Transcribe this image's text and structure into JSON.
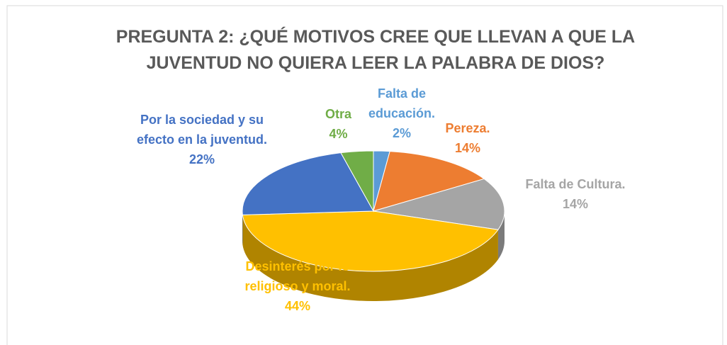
{
  "chart_data": {
    "type": "pie3d",
    "title": "PREGUNTA 2: ¿QUÉ MOTIVOS CREE QUE LLEVAN A QUE LA JUVENTUD NO QUIERA LEER LA PALABRA DE DIOS?",
    "categories": [
      "Falta de educación.",
      "Pereza.",
      "Falta de Cultura.",
      "Desinterés por lo religioso y moral.",
      "Por la sociedad y su efecto en la juventud.",
      "Otra"
    ],
    "values": [
      2,
      14,
      14,
      44,
      22,
      4
    ],
    "value_labels": [
      "2%",
      "14%",
      "14%",
      "44%",
      "22%",
      "4%"
    ],
    "colors": [
      "#5b9bd5",
      "#ed7d31",
      "#a5a5a5",
      "#ffc000",
      "#4472c4",
      "#70ad47"
    ],
    "side_colors": [
      "#3d7ab3",
      "#b35a1f",
      "#7b7b7b",
      "#b08400",
      "#2f5597",
      "#4e7a31"
    ]
  }
}
